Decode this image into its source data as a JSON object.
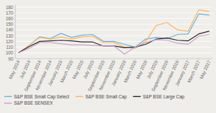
{
  "chart_data": {
    "type": "line",
    "categories": [
      "May 2014",
      "July 2014",
      "September 2014",
      "November 2014",
      "January 2015",
      "March 2015",
      "May 2015",
      "July 2015",
      "September 2015",
      "November 2015",
      "January 2016",
      "March 2016",
      "May 2016",
      "July 2016",
      "September 2016",
      "November 2016",
      "January 2017",
      "March 2017",
      "May 2017"
    ],
    "series": [
      {
        "name": "S&P BSE Small Cap Select",
        "color": "#6BAED6",
        "values": [
          100,
          113,
          128,
          125,
          134,
          127,
          131,
          132,
          120,
          120,
          115,
          110,
          124,
          127,
          125,
          132,
          133,
          168,
          166
        ]
      },
      {
        "name": "S&P BSE Small Cap",
        "color": "#FDB462",
        "values": [
          100,
          113,
          127,
          124,
          128,
          124,
          128,
          129,
          118,
          118,
          110,
          108,
          120,
          148,
          153,
          140,
          138,
          175,
          172
        ]
      },
      {
        "name": "S&P BSE Large Cap",
        "color": "#222222",
        "values": [
          100,
          111,
          120,
          121,
          122,
          121,
          119,
          119,
          112,
          112,
          109,
          110,
          115,
          124,
          126,
          122,
          121,
          133,
          138
        ]
      },
      {
        "name": "S&P BSE SENSEX",
        "color": "#C9A0C9",
        "values": [
          100,
          108,
          118,
          118,
          116,
          114,
          114,
          113,
          112,
          112,
          98,
          110,
          118,
          123,
          122,
          117,
          115,
          129,
          132
        ]
      }
    ],
    "ylim": [
      90,
      185
    ],
    "yticks": [
      90,
      100,
      110,
      120,
      130,
      140,
      150,
      160,
      170,
      180
    ],
    "grid": true,
    "legend": "bottom"
  }
}
